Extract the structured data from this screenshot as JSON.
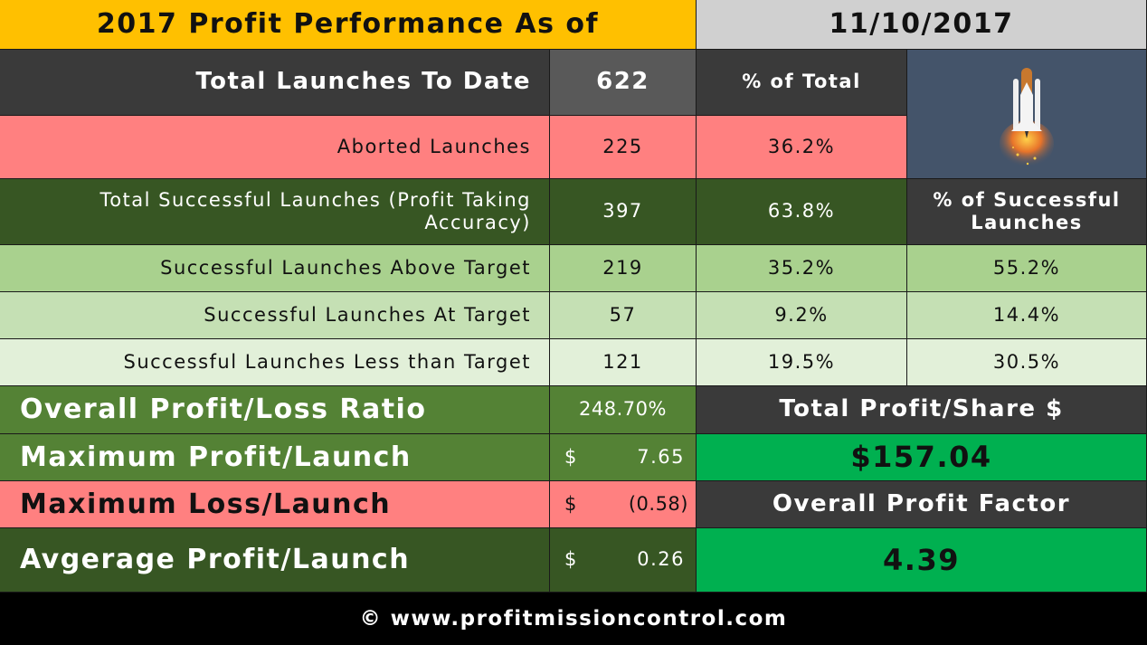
{
  "header": {
    "title": "2017 Profit Performance As of",
    "date": "11/10/2017"
  },
  "total_launches": {
    "label": "Total Launches To Date",
    "value": "622",
    "pct_header": "% of Total"
  },
  "aborted": {
    "label": "Aborted Launches",
    "value": "225",
    "pct": "36.2%"
  },
  "successful": {
    "label": "Total Successful Launches (Profit Taking Accuracy)",
    "value": "397",
    "pct": "63.8%",
    "pct_header": "% of Successful Launches"
  },
  "rows": [
    {
      "label": "Successful Launches Above Target",
      "value": "219",
      "pct_total": "35.2%",
      "pct_successful": "55.2%"
    },
    {
      "label": "Successful Launches At Target",
      "value": "57",
      "pct_total": "9.2%",
      "pct_successful": "14.4%"
    },
    {
      "label": "Successful Launches Less than Target",
      "value": "121",
      "pct_total": "19.5%",
      "pct_successful": "30.5%"
    }
  ],
  "stats": {
    "ratio_label": "Overall Profit/Loss Ratio",
    "ratio_value": "248.70%",
    "max_profit_label": "Maximum Profit/Launch",
    "max_profit_currency": "$",
    "max_profit_value": "7.65",
    "max_loss_label": "Maximum Loss/Launch",
    "max_loss_currency": "$",
    "max_loss_value": "(0.58)",
    "avg_label": "Avgerage Profit/Launch",
    "avg_currency": "$",
    "avg_value": "0.26",
    "total_profit_label": "Total Profit/Share $",
    "total_profit_value": "$157.04",
    "profit_factor_label": "Overall Profit Factor",
    "profit_factor_value": "4.39"
  },
  "image": {
    "icon": "space-shuttle-icon"
  },
  "footer": {
    "text": "© www.profitmissioncontrol.com"
  }
}
